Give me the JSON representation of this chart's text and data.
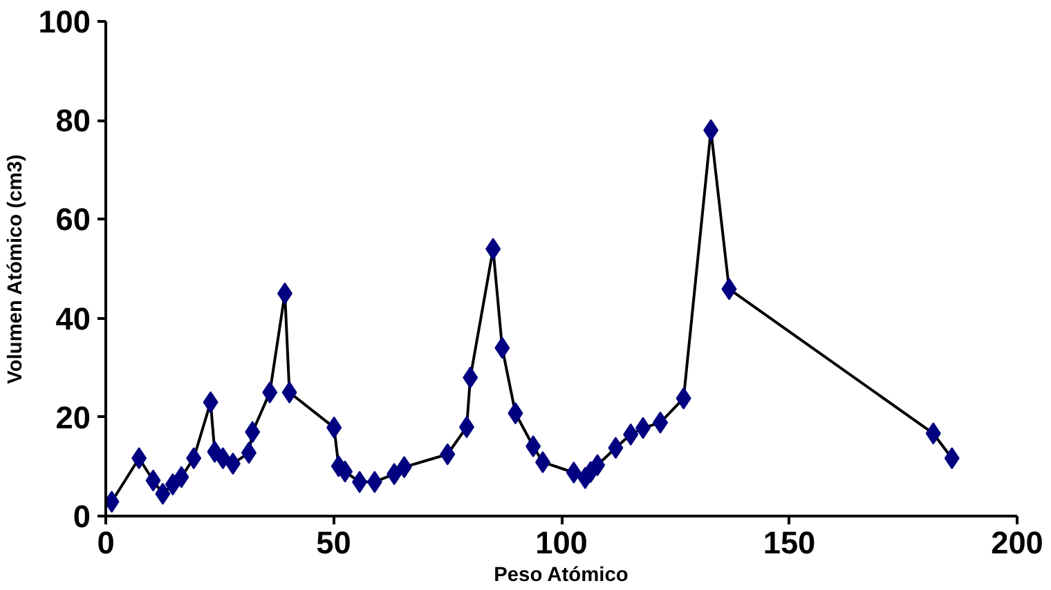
{
  "chart_data": {
    "type": "line",
    "xlabel": "Peso Atómico",
    "ylabel": "Volumen Atómico (cm3)",
    "x": [
      1.3,
      7.3,
      10.4,
      12.5,
      14.7,
      16.6,
      19.3,
      23,
      23.9,
      25.7,
      27.9,
      31.4,
      32.2,
      36,
      39.3,
      40.3,
      50.1,
      51.1,
      52.5,
      55.7,
      59,
      63.3,
      65.5,
      75,
      79.2,
      80,
      85,
      87,
      89.9,
      93.8,
      95.9,
      102.7,
      105.2,
      106.4,
      107.9,
      111.9,
      115.2,
      117.9,
      121.7,
      126.8,
      132.8,
      136.8,
      181.6,
      185.7
    ],
    "series": [
      {
        "color": "#000080",
        "values": [
          2.9,
          11.7,
          7.2,
          4.5,
          6.4,
          7.9,
          11.7,
          23,
          13,
          11.7,
          10.6,
          12.8,
          17,
          25,
          45,
          25,
          17.9,
          10.1,
          9,
          6.9,
          6.9,
          8.5,
          9.9,
          12.5,
          18,
          28,
          54,
          34,
          20.8,
          14.1,
          10.9,
          8.8,
          7.7,
          8.9,
          10.3,
          13.8,
          16.5,
          17.8,
          18.9,
          23.8,
          78,
          45.9,
          16.7,
          11.7
        ]
      }
    ],
    "xlim": [
      0,
      200
    ],
    "ylim": [
      0,
      100
    ],
    "xticks": [
      0,
      50,
      100,
      150,
      200
    ],
    "yticks": [
      0,
      20,
      40,
      60,
      80,
      100
    ],
    "grid": false,
    "marker": "diamond",
    "line_style": "solid"
  }
}
